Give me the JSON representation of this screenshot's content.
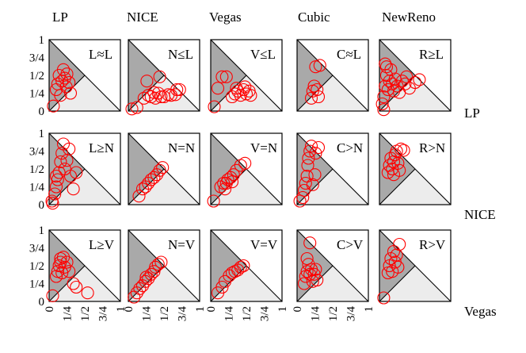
{
  "chart_data": {
    "type": "scatter",
    "column_titles": [
      "LP",
      "NICE",
      "Vegas",
      "Cubic",
      "NewReno"
    ],
    "row_labels": [
      "LP",
      "NICE",
      "Vegas"
    ],
    "y_ticks": [
      "1",
      "3/4",
      "1/2",
      "1/4",
      "0"
    ],
    "x_ticks": [
      "0",
      "1/4",
      "1/2",
      "3/4",
      "1"
    ],
    "xlim": [
      0,
      1
    ],
    "ylim": [
      0,
      1
    ],
    "panels": [
      {
        "label": "L≈L",
        "points": [
          [
            0.06,
            0.07
          ],
          [
            0.1,
            0.3
          ],
          [
            0.12,
            0.38
          ],
          [
            0.14,
            0.5
          ],
          [
            0.18,
            0.42
          ],
          [
            0.2,
            0.58
          ],
          [
            0.22,
            0.46
          ],
          [
            0.25,
            0.52
          ],
          [
            0.28,
            0.4
          ],
          [
            0.3,
            0.25
          ],
          [
            0.16,
            0.22
          ],
          [
            0.24,
            0.34
          ]
        ]
      },
      {
        "label": "N≤L",
        "points": [
          [
            0.05,
            0.03
          ],
          [
            0.12,
            0.05
          ],
          [
            0.22,
            0.18
          ],
          [
            0.28,
            0.22
          ],
          [
            0.32,
            0.2
          ],
          [
            0.38,
            0.18
          ],
          [
            0.42,
            0.25
          ],
          [
            0.46,
            0.2
          ],
          [
            0.5,
            0.2
          ],
          [
            0.56,
            0.23
          ],
          [
            0.6,
            0.22
          ],
          [
            0.68,
            0.3
          ],
          [
            0.72,
            0.3
          ],
          [
            0.36,
            0.26
          ],
          [
            0.26,
            0.42
          ],
          [
            0.44,
            0.48
          ],
          [
            0.66,
            0.23
          ]
        ]
      },
      {
        "label": "V≤L",
        "points": [
          [
            0.05,
            0.06
          ],
          [
            0.1,
            0.32
          ],
          [
            0.16,
            0.48
          ],
          [
            0.22,
            0.48
          ],
          [
            0.3,
            0.2
          ],
          [
            0.34,
            0.24
          ],
          [
            0.38,
            0.28
          ],
          [
            0.42,
            0.22
          ],
          [
            0.46,
            0.3
          ],
          [
            0.5,
            0.24
          ],
          [
            0.54,
            0.28
          ],
          [
            0.56,
            0.22
          ],
          [
            0.48,
            0.34
          ],
          [
            0.36,
            0.32
          ]
        ]
      },
      {
        "label": "C≈L",
        "points": [
          [
            0.2,
            0.18
          ],
          [
            0.22,
            0.28
          ],
          [
            0.24,
            0.35
          ],
          [
            0.28,
            0.3
          ],
          [
            0.3,
            0.2
          ],
          [
            0.26,
            0.62
          ],
          [
            0.32,
            0.64
          ]
        ]
      },
      {
        "label": "R≥L",
        "points": [
          [
            0.04,
            0.1
          ],
          [
            0.06,
            0.2
          ],
          [
            0.08,
            0.35
          ],
          [
            0.1,
            0.5
          ],
          [
            0.12,
            0.3
          ],
          [
            0.14,
            0.42
          ],
          [
            0.16,
            0.58
          ],
          [
            0.18,
            0.38
          ],
          [
            0.2,
            0.28
          ],
          [
            0.22,
            0.45
          ],
          [
            0.25,
            0.35
          ],
          [
            0.28,
            0.26
          ],
          [
            0.32,
            0.42
          ],
          [
            0.36,
            0.38
          ],
          [
            0.38,
            0.48
          ],
          [
            0.42,
            0.32
          ],
          [
            0.5,
            0.4
          ],
          [
            0.56,
            0.44
          ],
          [
            0.1,
            0.62
          ],
          [
            0.08,
            0.66
          ],
          [
            0.06,
            0.02
          ]
        ]
      },
      {
        "label": "L≥N",
        "points": [
          [
            0.04,
            0.05
          ],
          [
            0.05,
            0.02
          ],
          [
            0.08,
            0.15
          ],
          [
            0.1,
            0.25
          ],
          [
            0.12,
            0.35
          ],
          [
            0.14,
            0.45
          ],
          [
            0.16,
            0.6
          ],
          [
            0.18,
            0.72
          ],
          [
            0.2,
            0.85
          ],
          [
            0.22,
            0.5
          ],
          [
            0.25,
            0.62
          ],
          [
            0.28,
            0.78
          ],
          [
            0.3,
            0.4
          ],
          [
            0.34,
            0.22
          ],
          [
            0.38,
            0.45
          ],
          [
            0.1,
            0.4
          ]
        ]
      },
      {
        "label": "N=N",
        "points": [
          [
            0.15,
            0.12
          ],
          [
            0.2,
            0.22
          ],
          [
            0.24,
            0.25
          ],
          [
            0.28,
            0.3
          ],
          [
            0.32,
            0.35
          ],
          [
            0.36,
            0.38
          ],
          [
            0.4,
            0.42
          ],
          [
            0.44,
            0.48
          ],
          [
            0.48,
            0.52
          ]
        ]
      },
      {
        "label": "V=N",
        "points": [
          [
            0.04,
            0.05
          ],
          [
            0.14,
            0.25
          ],
          [
            0.18,
            0.3
          ],
          [
            0.2,
            0.22
          ],
          [
            0.24,
            0.35
          ],
          [
            0.28,
            0.38
          ],
          [
            0.32,
            0.42
          ],
          [
            0.36,
            0.48
          ],
          [
            0.42,
            0.55
          ],
          [
            0.48,
            0.58
          ],
          [
            0.22,
            0.3
          ],
          [
            0.3,
            0.32
          ]
        ]
      },
      {
        "label": "C>N",
        "points": [
          [
            0.04,
            0.05
          ],
          [
            0.08,
            0.1
          ],
          [
            0.1,
            0.2
          ],
          [
            0.12,
            0.3
          ],
          [
            0.14,
            0.4
          ],
          [
            0.15,
            0.55
          ],
          [
            0.16,
            0.65
          ],
          [
            0.18,
            0.75
          ],
          [
            0.2,
            0.82
          ],
          [
            0.22,
            0.28
          ],
          [
            0.25,
            0.42
          ],
          [
            0.26,
            0.72
          ],
          [
            0.3,
            0.8
          ]
        ]
      },
      {
        "label": "R>N",
        "points": [
          [
            0.12,
            0.45
          ],
          [
            0.14,
            0.55
          ],
          [
            0.16,
            0.65
          ],
          [
            0.18,
            0.5
          ],
          [
            0.2,
            0.6
          ],
          [
            0.22,
            0.7
          ],
          [
            0.24,
            0.75
          ],
          [
            0.26,
            0.58
          ],
          [
            0.28,
            0.48
          ],
          [
            0.3,
            0.78
          ],
          [
            0.34,
            0.76
          ],
          [
            0.2,
            0.42
          ]
        ]
      },
      {
        "label": "L≥V",
        "points": [
          [
            0.05,
            0.08
          ],
          [
            0.1,
            0.35
          ],
          [
            0.12,
            0.42
          ],
          [
            0.14,
            0.5
          ],
          [
            0.16,
            0.55
          ],
          [
            0.18,
            0.4
          ],
          [
            0.2,
            0.62
          ],
          [
            0.22,
            0.48
          ],
          [
            0.25,
            0.55
          ],
          [
            0.28,
            0.42
          ],
          [
            0.34,
            0.25
          ],
          [
            0.38,
            0.2
          ],
          [
            0.54,
            0.12
          ],
          [
            0.16,
            0.6
          ]
        ]
      },
      {
        "label": "N=V",
        "points": [
          [
            0.08,
            0.06
          ],
          [
            0.12,
            0.12
          ],
          [
            0.16,
            0.18
          ],
          [
            0.2,
            0.22
          ],
          [
            0.24,
            0.28
          ],
          [
            0.28,
            0.32
          ],
          [
            0.32,
            0.38
          ],
          [
            0.36,
            0.42
          ],
          [
            0.38,
            0.48
          ],
          [
            0.42,
            0.52
          ],
          [
            0.46,
            0.55
          ],
          [
            0.25,
            0.34
          ]
        ]
      },
      {
        "label": "V=V",
        "points": [
          [
            0.1,
            0.12
          ],
          [
            0.16,
            0.2
          ],
          [
            0.2,
            0.28
          ],
          [
            0.26,
            0.36
          ],
          [
            0.3,
            0.4
          ],
          [
            0.34,
            0.42
          ],
          [
            0.38,
            0.44
          ],
          [
            0.42,
            0.48
          ],
          [
            0.46,
            0.5
          ]
        ]
      },
      {
        "label": "C>V",
        "points": [
          [
            0.1,
            0.25
          ],
          [
            0.12,
            0.35
          ],
          [
            0.14,
            0.42
          ],
          [
            0.16,
            0.52
          ],
          [
            0.18,
            0.38
          ],
          [
            0.2,
            0.45
          ],
          [
            0.22,
            0.28
          ],
          [
            0.24,
            0.38
          ],
          [
            0.26,
            0.45
          ],
          [
            0.28,
            0.3
          ],
          [
            0.18,
            0.82
          ],
          [
            0.14,
            0.6
          ]
        ]
      },
      {
        "label": "R>V",
        "points": [
          [
            0.06,
            0.05
          ],
          [
            0.12,
            0.4
          ],
          [
            0.14,
            0.5
          ],
          [
            0.16,
            0.6
          ],
          [
            0.18,
            0.42
          ],
          [
            0.2,
            0.7
          ],
          [
            0.22,
            0.55
          ],
          [
            0.24,
            0.65
          ],
          [
            0.26,
            0.48
          ],
          [
            0.28,
            0.8
          ]
        ]
      }
    ]
  }
}
